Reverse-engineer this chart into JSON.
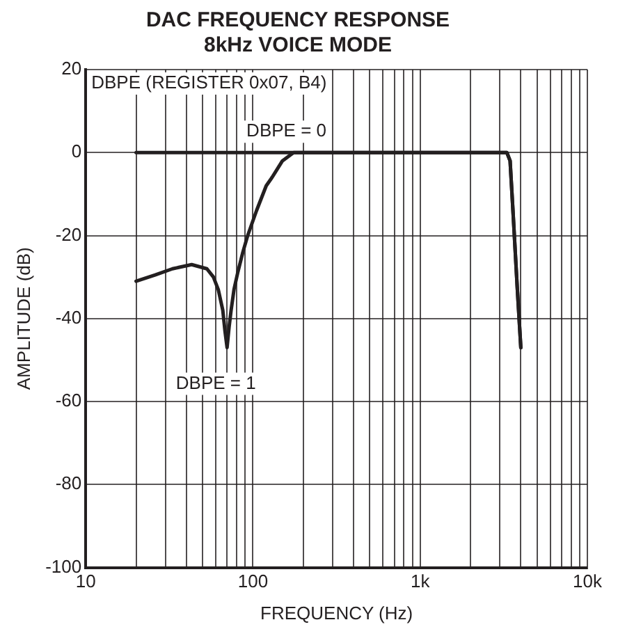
{
  "chart_data": {
    "type": "line",
    "title": [
      "DAC FREQUENCY RESPONSE",
      "8kHz VOICE MODE"
    ],
    "xlabel": "FREQUENCY (Hz)",
    "ylabel": "AMPLITUDE (dB)",
    "log": "x",
    "xlim": [
      10,
      10000
    ],
    "xticks": [
      10,
      {
        "value": 20,
        "label": null
      },
      {
        "value": 30,
        "label": null
      },
      {
        "value": 40,
        "label": null
      },
      {
        "value": 50,
        "label": null
      },
      {
        "value": 60,
        "label": null
      },
      {
        "value": 70,
        "label": null
      },
      {
        "value": 80,
        "label": null
      },
      {
        "value": 90,
        "label": null
      },
      100,
      {
        "value": 200,
        "label": null
      },
      {
        "value": 300,
        "label": null
      },
      {
        "value": 400,
        "label": null
      },
      {
        "value": 500,
        "label": null
      },
      {
        "value": 600,
        "label": null
      },
      {
        "value": 700,
        "label": null
      },
      {
        "value": 800,
        "label": null
      },
      {
        "value": 900,
        "label": null
      },
      {
        "value": 1000,
        "label": "1k"
      },
      {
        "value": 2000,
        "label": null
      },
      {
        "value": 3000,
        "label": null
      },
      {
        "value": 4000,
        "label": null
      },
      {
        "value": 5000,
        "label": null
      },
      {
        "value": 6000,
        "label": null
      },
      {
        "value": 7000,
        "label": null
      },
      {
        "value": 8000,
        "label": null
      },
      {
        "value": 9000,
        "label": null
      },
      {
        "value": 10000,
        "label": "10k"
      }
    ],
    "ylim": [
      -100,
      20
    ],
    "yticks": [
      -100,
      -80,
      -60,
      -40,
      -20,
      0,
      20
    ],
    "grid": true,
    "legend": false,
    "marker": "none",
    "line_style": "solid",
    "series": [
      {
        "name": "DBPE = 0",
        "color": "#231f20",
        "x": [
          20,
          100,
          1000,
          3300,
          3450,
          3600,
          3800,
          4000
        ],
        "values": [
          0,
          0,
          0,
          0,
          -2,
          -15,
          -32,
          -47
        ]
      },
      {
        "name": "DBPE = 1",
        "color": "#231f20",
        "x": [
          20,
          26,
          33,
          43,
          53,
          58,
          62,
          66,
          68,
          70,
          72,
          74,
          77,
          81,
          87,
          93,
          105,
          120,
          130,
          150,
          175,
          200,
          1000,
          3300,
          3450,
          3600,
          3800,
          4000
        ],
        "values": [
          -31,
          -29.5,
          -28,
          -27,
          -28,
          -30,
          -33,
          -38,
          -43,
          -47,
          -42,
          -38,
          -33,
          -29,
          -24,
          -20,
          -14,
          -8,
          -6,
          -2,
          0,
          0,
          0,
          0,
          -2,
          -15,
          -32,
          -47
        ]
      }
    ],
    "annotations": [
      "DBPE (REGISTER 0x07, B4)"
    ]
  }
}
